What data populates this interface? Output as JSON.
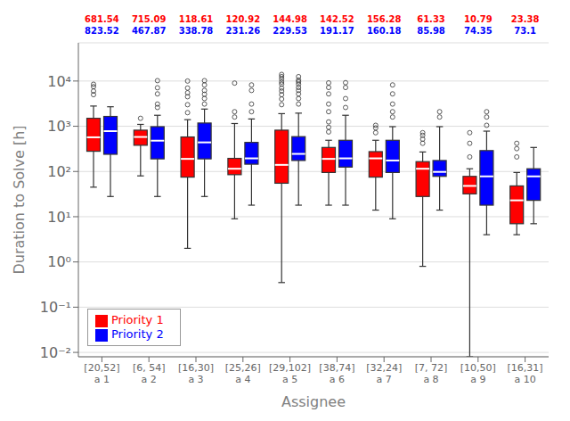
{
  "chart_data": {
    "type": "box",
    "xlabel": "Assignee",
    "ylabel": "Duration to Solve [h]",
    "categories": [
      "[20,52]\na 1",
      "[6, 54]\na 2",
      "[16,30]\na 3",
      "[25,26]\na 4",
      "[29,102]\na 5",
      "[38,74]\na 6",
      "[32,24]\na 7",
      "[7, 72]\na 8",
      "[10,50]\na 9",
      "[16,31]\na 10"
    ],
    "log": "y",
    "ylim": [
      0.008,
      70000
    ],
    "yticks": [
      {
        "value": 0.01,
        "label": "10⁻²"
      },
      {
        "value": 0.1,
        "label": "10⁻¹"
      },
      {
        "value": 1,
        "label": "10⁰"
      },
      {
        "value": 10,
        "label": "10¹"
      },
      {
        "value": 100,
        "label": "10²"
      },
      {
        "value": 1000,
        "label": "10³"
      },
      {
        "value": 10000,
        "label": "10⁴"
      }
    ],
    "grid": true,
    "legend": "lower left",
    "series": [
      {
        "name": "Priority 1",
        "color": "#FF0000",
        "means": [
          681.54,
          715.09,
          118.61,
          120.92,
          144.98,
          142.52,
          156.28,
          61.33,
          10.79,
          23.38
        ],
        "boxes": [
          {
            "q1": 280,
            "med": 570,
            "q3": 1500,
            "whislo": 45,
            "whishi": 2800,
            "fliers": [
              5000,
              6000,
              7500,
              8500
            ]
          },
          {
            "q1": 380,
            "med": 580,
            "q3": 820,
            "whislo": 80,
            "whishi": 1100,
            "fliers": [
              1500
            ]
          },
          {
            "q1": 75,
            "med": 190,
            "q3": 580,
            "whislo": 2,
            "whishi": 1400,
            "fliers": [
              2000,
              3000,
              4500,
              5500,
              7000,
              10000
            ]
          },
          {
            "q1": 85,
            "med": 115,
            "q3": 195,
            "whislo": 9,
            "whishi": 1150,
            "fliers": [
              1600,
              2100,
              9000
            ]
          },
          {
            "q1": 55,
            "med": 140,
            "q3": 820,
            "whislo": 0.35,
            "whishi": 1900,
            "fliers": [
              3000,
              4000,
              5000,
              6000,
              7000,
              8500,
              9500,
              11000,
              12500,
              14000
            ]
          },
          {
            "q1": 95,
            "med": 190,
            "q3": 340,
            "whislo": 18,
            "whishi": 490,
            "fliers": [
              750,
              950,
              1250,
              2100,
              3100,
              5200,
              7200,
              9100
            ]
          },
          {
            "q1": 75,
            "med": 195,
            "q3": 275,
            "whislo": 14,
            "whishi": 490,
            "fliers": [
              720,
              920,
              1050
            ]
          },
          {
            "q1": 28,
            "med": 115,
            "q3": 165,
            "whislo": 0.8,
            "whishi": 270,
            "fliers": [
              420,
              520,
              630,
              720
            ]
          },
          {
            "q1": 32,
            "med": 48,
            "q3": 78,
            "whislo": 0.008,
            "whishi": 115,
            "fliers": [
              210,
              420,
              720
            ]
          },
          {
            "q1": 7,
            "med": 23,
            "q3": 48,
            "whislo": 4,
            "whishi": 95,
            "fliers": [
              210,
              320,
              420
            ]
          }
        ]
      },
      {
        "name": "Priority 2",
        "color": "#0000FF",
        "means": [
          823.52,
          467.87,
          338.78,
          231.26,
          229.53,
          191.17,
          160.18,
          85.98,
          74.35,
          73.1
        ],
        "boxes": [
          {
            "q1": 240,
            "med": 780,
            "q3": 1650,
            "whislo": 28,
            "whishi": 2700,
            "fliers": []
          },
          {
            "q1": 190,
            "med": 480,
            "q3": 980,
            "whislo": 28,
            "whishi": 1750,
            "fliers": [
              2600,
              3100,
              5200,
              7100,
              10200
            ]
          },
          {
            "q1": 190,
            "med": 440,
            "q3": 1180,
            "whislo": 28,
            "whishi": 2400,
            "fliers": [
              3100,
              4100,
              5100,
              6200,
              8200,
              10200
            ]
          },
          {
            "q1": 145,
            "med": 195,
            "q3": 440,
            "whislo": 18,
            "whishi": 1450,
            "fliers": [
              2100,
              3100,
              6200,
              8200
            ]
          },
          {
            "q1": 175,
            "med": 245,
            "q3": 590,
            "whislo": 18,
            "whishi": 1950,
            "fliers": [
              3100,
              4100,
              5200,
              6200,
              7200,
              8500,
              9600,
              10500,
              12500
            ]
          },
          {
            "q1": 125,
            "med": 195,
            "q3": 490,
            "whislo": 18,
            "whishi": 1750,
            "fliers": [
              2600,
              4100,
              7200,
              9200
            ]
          },
          {
            "q1": 95,
            "med": 175,
            "q3": 490,
            "whislo": 9,
            "whishi": 980,
            "fliers": [
              1600,
              2100,
              3100,
              5200,
              8200
            ]
          },
          {
            "q1": 78,
            "med": 98,
            "q3": 175,
            "whislo": 14,
            "whishi": 980,
            "fliers": [
              1600,
              2100
            ]
          },
          {
            "q1": 18,
            "med": 78,
            "q3": 290,
            "whislo": 4,
            "whishi": 780,
            "fliers": [
              1050,
              1600,
              2100
            ]
          },
          {
            "q1": 23,
            "med": 78,
            "q3": 115,
            "whislo": 7,
            "whishi": 340,
            "fliers": []
          }
        ]
      }
    ]
  }
}
